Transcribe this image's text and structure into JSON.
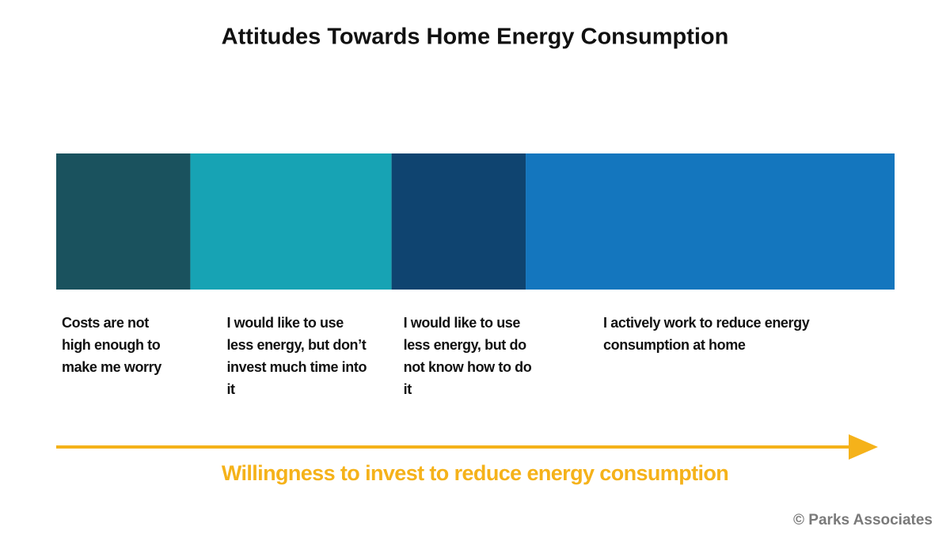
{
  "chart_data": {
    "type": "stacked-bar",
    "title": "Attitudes Towards Home Energy Consumption",
    "series": [
      {
        "name": "Costs are not high enough to make me worry",
        "color": "#1a525e",
        "values": [
          16
        ]
      },
      {
        "name": "I would like to use less energy, but don’t invest much time into it",
        "color": "#17a3b4",
        "values": [
          24
        ]
      },
      {
        "name": "I would like to use less energy, but do not know how to do it",
        "color": "#0f4470",
        "values": [
          16
        ]
      },
      {
        "name": "I actively work to reduce energy consumption at home",
        "color": "#1476be",
        "values": [
          44
        ]
      }
    ],
    "xlim": [
      0,
      100
    ],
    "x_label": "Willingness to invest to reduce energy consumption",
    "source": "© Parks Associates"
  }
}
